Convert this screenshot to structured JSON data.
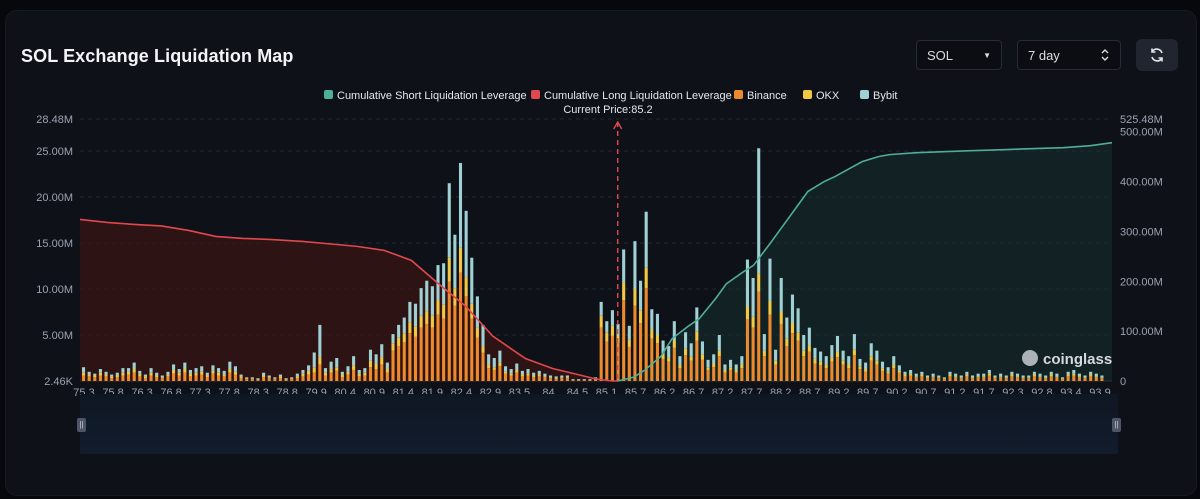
{
  "page": {
    "title": "SOL Exchange Liquidation Map"
  },
  "controls": {
    "symbol": "SOL",
    "range": "7 day"
  },
  "legend": [
    {
      "label": "Cumulative Short Liquidation Leverage",
      "color": "#4fae98"
    },
    {
      "label": "Cumulative Long Liquidation Leverage",
      "color": "#e0484e"
    },
    {
      "label": "Binance",
      "color": "#ec8a2c"
    },
    {
      "label": "OKX",
      "color": "#f2c744"
    },
    {
      "label": "Bybit",
      "color": "#9fd0d3"
    }
  ],
  "current_price_label": "Current Price:85.2",
  "watermark": "coinglass",
  "colors": {
    "binance": "#ec8a2c",
    "okx": "#f2c744",
    "bybit": "#9fd0d3",
    "short": "#4fae98",
    "long": "#e0484e",
    "grid": "#232833",
    "axis_text": "#9aa3b2",
    "current_price": "#e0484e"
  },
  "chart_data": {
    "type": "bar",
    "title": "SOL Exchange Liquidation Map",
    "current_price": 85.2,
    "x_range": [
      75.3,
      94.3
    ],
    "x_ticks": [
      "75.3",
      "75.8",
      "76.3",
      "76.8",
      "77.3",
      "77.8",
      "78.3",
      "78.8",
      "79.9",
      "80.4",
      "80.9",
      "81.4",
      "81.9",
      "82.4",
      "82.9",
      "83.5",
      "84",
      "84.5",
      "85.1",
      "85.7",
      "86.2",
      "86.7",
      "87.2",
      "87.7",
      "88.2",
      "88.7",
      "89.2",
      "89.7",
      "90.2",
      "90.7",
      "91.2",
      "91.7",
      "92.3",
      "92.8",
      "93.4",
      "93.9"
    ],
    "y_left": {
      "min": 0,
      "max": 28.48,
      "unit": "M",
      "tick_values": [
        5,
        10,
        15,
        20,
        25
      ],
      "tick_labels": [
        "2.46K",
        "5.00M",
        "10.00M",
        "15.00M",
        "20.00M",
        "25.00M",
        "28.48M"
      ]
    },
    "y_right": {
      "min": 0,
      "max": 525.48,
      "unit": "M",
      "tick_values": [
        100,
        200,
        300,
        400,
        500
      ],
      "tick_labels": [
        "0",
        "100.00M",
        "200.00M",
        "300.00M",
        "400.00M",
        "500.00M",
        "525.48M"
      ]
    },
    "bar_series": [
      {
        "name": "Binance",
        "values": [
          0.6,
          0.5,
          0.4,
          0.6,
          0.5,
          0.3,
          0.4,
          0.6,
          0.7,
          0.9,
          0.5,
          0.3,
          0.6,
          0.4,
          0.3,
          0.5,
          0.8,
          0.6,
          0.9,
          0.5,
          0.6,
          0.7,
          0.4,
          0.8,
          0.6,
          0.5,
          0.9,
          0.7,
          0.3,
          0.2,
          0.2,
          0.1,
          0.4,
          0.3,
          0.2,
          0.3,
          0.1,
          0.2,
          0.3,
          0.5,
          0.7,
          0.9,
          1.8,
          0.6,
          0.9,
          1.1,
          0.4,
          0.7,
          1.2,
          0.5,
          0.6,
          1.5,
          1.3,
          1.8,
          0.9,
          3.3,
          3.8,
          4.2,
          5.2,
          4.8,
          5.8,
          6.2,
          5.8,
          7.2,
          6.8,
          10.8,
          8.2,
          11.8,
          9.2,
          6.8,
          4.7,
          3.1,
          1.4,
          1.2,
          1.6,
          0.8,
          0.6,
          0.9,
          0.5,
          0.6,
          0.4,
          0.5,
          0.4,
          0.3,
          0.2,
          0.3,
          0.3,
          0.1,
          0.1,
          0.1,
          0.1,
          0.2,
          5.8,
          4.3,
          4.9,
          4.1,
          8.8,
          3.7,
          8.2,
          6.3,
          10.1,
          4.6,
          4.1,
          2.4,
          2.1,
          3.6,
          1.4,
          2.8,
          2.2,
          4.4,
          2.3,
          1.2,
          1.5,
          2.7,
          0.9,
          1.2,
          0.9,
          1.4,
          6.7,
          5.8,
          9.7,
          2.7,
          7.2,
          1.8,
          6.2,
          3.8,
          5.2,
          4.4,
          2.7,
          3.2,
          1.9,
          1.7,
          1.4,
          2.1,
          2.6,
          1.8,
          1.4,
          2.8,
          1.3,
          1.0,
          2.2,
          1.8,
          1.1,
          0.8,
          1.4,
          0.9,
          0.5,
          0.6,
          0.4,
          0.5,
          0.3,
          0.4,
          0.3,
          0.2,
          0.5,
          0.4,
          0.3,
          0.5,
          0.3,
          0.4,
          0.4,
          0.6,
          0.3,
          0.4,
          0.3,
          0.5,
          0.4,
          0.3,
          0.3,
          0.5,
          0.4,
          0.3,
          0.5,
          0.4,
          0.2,
          0.5,
          0.6,
          0.4,
          0.3,
          0.5,
          0.4,
          0.3
        ]
      },
      {
        "name": "OKX",
        "values": [
          0.3,
          0.2,
          0.2,
          0.3,
          0.2,
          0.2,
          0.2,
          0.3,
          0.3,
          0.4,
          0.3,
          0.2,
          0.3,
          0.2,
          0.1,
          0.2,
          0.4,
          0.3,
          0.4,
          0.3,
          0.3,
          0.3,
          0.2,
          0.3,
          0.3,
          0.2,
          0.4,
          0.3,
          0.2,
          0.1,
          0.1,
          0.1,
          0.2,
          0.1,
          0.1,
          0.2,
          0.1,
          0.1,
          0.2,
          0.3,
          0.4,
          0.6,
          0.8,
          0.3,
          0.4,
          0.4,
          0.3,
          0.3,
          0.5,
          0.3,
          0.3,
          0.7,
          0.6,
          0.8,
          0.4,
          0.8,
          0.9,
          1.0,
          1.2,
          1.1,
          1.3,
          1.4,
          1.3,
          1.6,
          1.5,
          2.6,
          1.9,
          2.7,
          2.1,
          1.6,
          1.1,
          0.7,
          0.4,
          0.3,
          0.4,
          0.2,
          0.2,
          0.3,
          0.2,
          0.2,
          0.2,
          0.2,
          0.1,
          0.1,
          0.1,
          0.1,
          0.1,
          0.0,
          0.0,
          0.0,
          0.0,
          0.1,
          1.3,
          1.0,
          1.1,
          0.9,
          1.9,
          0.8,
          1.8,
          1.4,
          2.2,
          1.0,
          0.9,
          0.6,
          0.5,
          0.8,
          0.4,
          0.7,
          0.5,
          1.0,
          0.6,
          0.3,
          0.4,
          0.6,
          0.3,
          0.3,
          0.3,
          0.4,
          1.4,
          1.2,
          2.0,
          0.6,
          1.5,
          0.4,
          1.3,
          0.8,
          1.1,
          0.9,
          0.6,
          0.7,
          0.5,
          0.4,
          0.4,
          0.5,
          0.6,
          0.4,
          0.4,
          0.6,
          0.3,
          0.3,
          0.5,
          0.4,
          0.3,
          0.2,
          0.4,
          0.2,
          0.2,
          0.2,
          0.1,
          0.2,
          0.1,
          0.1,
          0.1,
          0.1,
          0.2,
          0.1,
          0.1,
          0.2,
          0.1,
          0.1,
          0.1,
          0.2,
          0.1,
          0.1,
          0.1,
          0.2,
          0.1,
          0.1,
          0.1,
          0.2,
          0.1,
          0.1,
          0.2,
          0.1,
          0.1,
          0.2,
          0.2,
          0.1,
          0.1,
          0.2,
          0.1,
          0.1
        ]
      },
      {
        "name": "Bybit",
        "values": [
          0.6,
          0.3,
          0.2,
          0.4,
          0.3,
          0.2,
          0.3,
          0.5,
          0.4,
          0.7,
          0.3,
          0.2,
          0.5,
          0.3,
          0.2,
          0.3,
          0.6,
          0.4,
          0.7,
          0.4,
          0.5,
          0.6,
          0.3,
          0.6,
          0.5,
          0.4,
          0.8,
          0.6,
          0.2,
          0.1,
          0.1,
          0.1,
          0.3,
          0.2,
          0.1,
          0.2,
          0.1,
          0.1,
          0.3,
          0.4,
          0.6,
          1.6,
          3.5,
          0.5,
          0.8,
          1.0,
          0.3,
          0.6,
          1.0,
          0.4,
          0.5,
          1.2,
          1.0,
          1.4,
          0.7,
          1.0,
          1.4,
          1.7,
          2.2,
          2.5,
          3.0,
          3.3,
          3.2,
          3.8,
          4.5,
          8.1,
          5.8,
          9.2,
          7.2,
          5.0,
          3.4,
          2.3,
          1.1,
          1.0,
          1.3,
          0.6,
          0.5,
          0.7,
          0.4,
          0.5,
          0.3,
          0.4,
          0.3,
          0.2,
          0.2,
          0.2,
          0.2,
          0.1,
          0.1,
          0.1,
          0.1,
          0.1,
          1.5,
          1.2,
          1.7,
          1.2,
          3.6,
          1.5,
          5.2,
          3.2,
          6.1,
          2.2,
          2.3,
          1.4,
          1.2,
          2.1,
          0.9,
          1.8,
          1.4,
          2.6,
          1.4,
          0.8,
          1.0,
          1.7,
          0.6,
          0.8,
          0.6,
          0.9,
          5.1,
          4.2,
          13.6,
          1.8,
          4.6,
          1.2,
          3.7,
          2.3,
          3.1,
          2.6,
          1.7,
          1.9,
          1.2,
          1.1,
          0.9,
          1.3,
          1.7,
          1.1,
          0.9,
          1.7,
          0.8,
          0.7,
          1.4,
          1.1,
          0.7,
          0.5,
          0.9,
          0.6,
          0.3,
          0.4,
          0.3,
          0.3,
          0.2,
          0.3,
          0.2,
          0.1,
          0.3,
          0.3,
          0.2,
          0.3,
          0.2,
          0.3,
          0.3,
          0.4,
          0.2,
          0.3,
          0.2,
          0.3,
          0.3,
          0.2,
          0.2,
          0.3,
          0.3,
          0.2,
          0.3,
          0.3,
          0.1,
          0.3,
          0.4,
          0.3,
          0.2,
          0.3,
          0.3,
          0.2
        ]
      }
    ],
    "cumulative_long": [
      {
        "x": 75.3,
        "y": 324
      },
      {
        "x": 75.8,
        "y": 318
      },
      {
        "x": 76.3,
        "y": 314
      },
      {
        "x": 76.8,
        "y": 311
      },
      {
        "x": 77.3,
        "y": 302
      },
      {
        "x": 77.8,
        "y": 290
      },
      {
        "x": 78.3,
        "y": 286
      },
      {
        "x": 78.8,
        "y": 284
      },
      {
        "x": 79.4,
        "y": 280
      },
      {
        "x": 79.9,
        "y": 275
      },
      {
        "x": 80.4,
        "y": 270
      },
      {
        "x": 80.9,
        "y": 262
      },
      {
        "x": 81.4,
        "y": 242
      },
      {
        "x": 81.9,
        "y": 195
      },
      {
        "x": 82.4,
        "y": 150
      },
      {
        "x": 82.9,
        "y": 90
      },
      {
        "x": 83.5,
        "y": 45
      },
      {
        "x": 84.0,
        "y": 25
      },
      {
        "x": 84.5,
        "y": 12
      },
      {
        "x": 84.8,
        "y": 4
      },
      {
        "x": 85.1,
        "y": 0
      },
      {
        "x": 85.2,
        "y": 0
      }
    ],
    "cumulative_short": [
      {
        "x": 85.2,
        "y": 0
      },
      {
        "x": 85.5,
        "y": 8
      },
      {
        "x": 85.7,
        "y": 22
      },
      {
        "x": 86.0,
        "y": 50
      },
      {
        "x": 86.2,
        "y": 85
      },
      {
        "x": 86.5,
        "y": 110
      },
      {
        "x": 86.7,
        "y": 125
      },
      {
        "x": 87.0,
        "y": 165
      },
      {
        "x": 87.2,
        "y": 195
      },
      {
        "x": 87.5,
        "y": 218
      },
      {
        "x": 87.7,
        "y": 232
      },
      {
        "x": 88.0,
        "y": 275
      },
      {
        "x": 88.2,
        "y": 305
      },
      {
        "x": 88.5,
        "y": 350
      },
      {
        "x": 88.7,
        "y": 380
      },
      {
        "x": 89.0,
        "y": 400
      },
      {
        "x": 89.2,
        "y": 410
      },
      {
        "x": 89.5,
        "y": 428
      },
      {
        "x": 89.7,
        "y": 440
      },
      {
        "x": 90.0,
        "y": 450
      },
      {
        "x": 90.2,
        "y": 454
      },
      {
        "x": 90.7,
        "y": 458
      },
      {
        "x": 91.2,
        "y": 460
      },
      {
        "x": 91.7,
        "y": 462
      },
      {
        "x": 92.3,
        "y": 464
      },
      {
        "x": 92.8,
        "y": 466
      },
      {
        "x": 93.4,
        "y": 468
      },
      {
        "x": 93.9,
        "y": 472
      },
      {
        "x": 94.3,
        "y": 478
      }
    ]
  }
}
